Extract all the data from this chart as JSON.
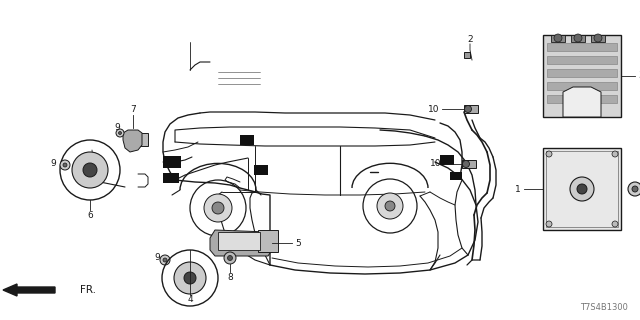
{
  "bg_color": "#ffffff",
  "diagram_code": "T7S4B1300",
  "line_color": "#1a1a1a",
  "part_color": "#cccccc",
  "dark_color": "#333333",
  "mid_color": "#888888"
}
